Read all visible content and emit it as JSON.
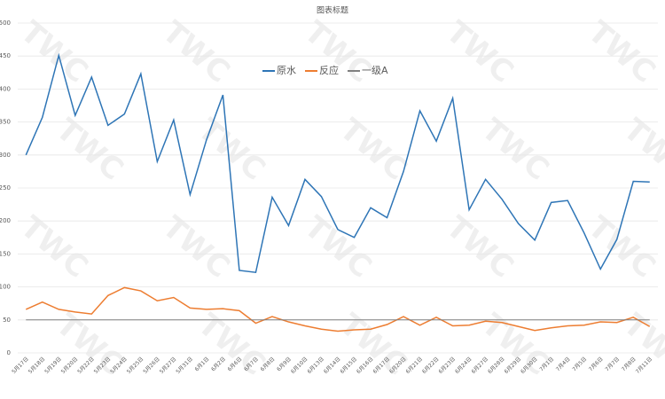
{
  "chart_data": {
    "type": "line",
    "title": "图表标题",
    "watermark": "TWC",
    "categories": [
      "5月17日",
      "5月18日",
      "5月19日",
      "5月20日",
      "5月22日",
      "5月23日",
      "5月24日",
      "5月25日",
      "5月26日",
      "5月27日",
      "5月31日",
      "6月1日",
      "6月2日",
      "6月6日",
      "6月7日",
      "6月8日",
      "6月9日",
      "6月10日",
      "6月13日",
      "6月14日",
      "6月15日",
      "6月16日",
      "6月17日",
      "6月20日",
      "6月21日",
      "6月22日",
      "6月23日",
      "6月24日",
      "6月27日",
      "6月28日",
      "6月29日",
      "6月30日",
      "7月1日",
      "7月4日",
      "7月5日",
      "7月6日",
      "7月7日",
      "7月8日",
      "7月11日"
    ],
    "series": [
      {
        "name": "原水",
        "color": "#2e75b6",
        "values": [
          300,
          357,
          451,
          360,
          418,
          345,
          362,
          423,
          290,
          353,
          240,
          323,
          391,
          125,
          122,
          236,
          193,
          263,
          237,
          187,
          175,
          220,
          205,
          275,
          367,
          321,
          386,
          217,
          263,
          233,
          196,
          171,
          228,
          231,
          182,
          127,
          172,
          260,
          259
        ]
      },
      {
        "name": "反应",
        "color": "#ed7d31",
        "values": [
          66,
          77,
          66,
          62,
          59,
          87,
          99,
          94,
          79,
          84,
          68,
          66,
          67,
          64,
          45,
          55,
          47,
          41,
          36,
          33,
          35,
          36,
          43,
          55,
          42,
          54,
          41,
          42,
          48,
          46,
          40,
          34,
          38,
          41,
          42,
          47,
          46,
          54,
          40
        ]
      },
      {
        "name": "一级A",
        "color": "#7f7f7f",
        "values": [
          50,
          50,
          50,
          50,
          50,
          50,
          50,
          50,
          50,
          50,
          50,
          50,
          50,
          50,
          50,
          50,
          50,
          50,
          50,
          50,
          50,
          50,
          50,
          50,
          50,
          50,
          50,
          50,
          50,
          50,
          50,
          50,
          50,
          50,
          50,
          50,
          50,
          50,
          50
        ]
      }
    ],
    "ylim": [
      0,
      500
    ],
    "yticks": [
      0,
      50,
      100,
      150,
      200,
      250,
      300,
      350,
      400,
      450,
      500
    ],
    "grid": true,
    "legend": "top"
  }
}
